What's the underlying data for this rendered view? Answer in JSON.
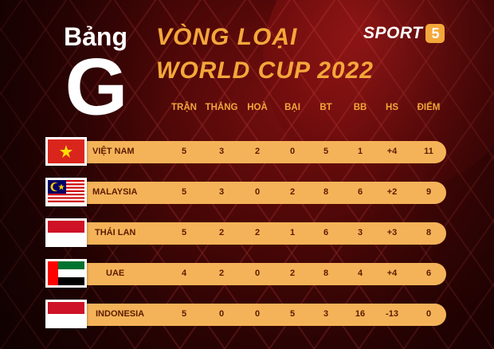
{
  "title": {
    "bang": "Bảng",
    "group_letter": "G",
    "line1": "VÒNG LOẠI",
    "line2": "WORLD CUP 2022"
  },
  "logo": {
    "text": "SPORT",
    "number": "5"
  },
  "columns": [
    "TRẬN",
    "THẮNG",
    "HOÀ",
    "BẠI",
    "BT",
    "BB",
    "HS",
    "ĐIỂM"
  ],
  "rows": [
    {
      "flag": "vietnam-flag",
      "team": "VIỆT NAM",
      "stats": [
        "5",
        "3",
        "2",
        "0",
        "5",
        "1",
        "+4",
        "11"
      ]
    },
    {
      "flag": "malaysia-flag",
      "team": "MALAYSIA",
      "stats": [
        "5",
        "3",
        "0",
        "2",
        "8",
        "6",
        "+2",
        "9"
      ]
    },
    {
      "flag": "thailand-flag",
      "team": "THÁI LAN",
      "stats": [
        "5",
        "2",
        "2",
        "1",
        "6",
        "3",
        "+3",
        "8"
      ]
    },
    {
      "flag": "uae-flag",
      "team": "UAE",
      "stats": [
        "4",
        "2",
        "0",
        "2",
        "8",
        "4",
        "+4",
        "6"
      ]
    },
    {
      "flag": "indonesia-flag",
      "team": "INDONESIA",
      "stats": [
        "5",
        "0",
        "0",
        "5",
        "3",
        "16",
        "-13",
        "0"
      ]
    }
  ],
  "colors": {
    "accent": "#f4a73a",
    "row_bar": "#f5b359",
    "row_text": "#5a1b00",
    "background": "#4d0707"
  }
}
